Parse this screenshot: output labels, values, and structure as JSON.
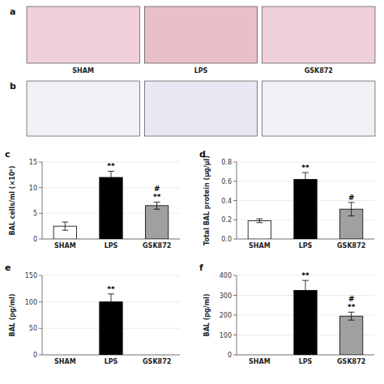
{
  "chart_data": [
    {
      "type": "image",
      "title": "a",
      "categories": [
        "SHAM",
        "LPS",
        "GSK872"
      ],
      "colors": [
        "#f0d0d8",
        "#e8c0c8",
        "#f0d0d8"
      ]
    },
    {
      "type": "image",
      "title": "b",
      "colors": [
        "#f0f0f5",
        "#e8e8f5",
        "#f0f0f5"
      ]
    },
    {
      "type": "bar",
      "title": "c",
      "categories": [
        "SHAM",
        "LPS",
        "GSK872"
      ],
      "values": [
        2.5,
        12.0,
        6.5
      ],
      "errors": [
        0.8,
        1.2,
        0.7
      ],
      "colors": [
        "white",
        "black",
        "#a0a0a0"
      ],
      "ylabel": "BAL cells/ml (×10⁶)",
      "ylim": [
        0,
        15
      ],
      "yticks": [
        0,
        5,
        10,
        15
      ],
      "annotations": [
        {
          "category": "LPS",
          "text": "**"
        },
        {
          "category": "GSK872",
          "text": "**"
        },
        {
          "category": "GSK872",
          "text": "#"
        }
      ]
    },
    {
      "type": "bar",
      "title": "d",
      "categories": [
        "SHAM",
        "LPS",
        "GSK872"
      ],
      "values": [
        0.19,
        0.62,
        0.31
      ],
      "errors": [
        0.02,
        0.07,
        0.07
      ],
      "colors": [
        "white",
        "black",
        "#a0a0a0"
      ],
      "ylabel": "Total BAL protein (μg/μl)",
      "ylim": [
        0.0,
        0.8
      ],
      "yticks": [
        {
          "value": 0.0,
          "label": "0.0"
        },
        0.2,
        0.4,
        0.6,
        0.8
      ],
      "annotations": [
        {
          "category": "LPS",
          "text": "**"
        },
        {
          "category": "GSK872",
          "text": "#"
        }
      ]
    },
    {
      "type": "bar",
      "title": "e",
      "categories": [
        "SHAM",
        "LPS",
        "GSK872"
      ],
      "values": [
        0,
        100,
        0
      ],
      "errors": [
        0,
        15,
        0
      ],
      "colors": [
        "white",
        "black",
        "#a0a0a0"
      ],
      "ylabel": "BAL (pg/ml)",
      "ylim": [
        0,
        150
      ],
      "yticks": [
        0,
        50,
        100,
        150
      ],
      "annotations": [
        {
          "category": "LPS",
          "text": "**"
        }
      ]
    },
    {
      "type": "bar",
      "title": "f",
      "categories": [
        "SHAM",
        "LPS",
        "GSK872"
      ],
      "values": [
        0,
        325,
        195
      ],
      "errors": [
        0,
        50,
        20
      ],
      "colors": [
        "white",
        "black",
        "#a0a0a0"
      ],
      "ylabel": "BAL (pg/ml)",
      "ylim": [
        0,
        400
      ],
      "yticks": [
        0,
        100,
        200,
        300,
        400
      ],
      "annotations": [
        {
          "category": "LPS",
          "text": "**"
        },
        {
          "category": "GSK872",
          "text": "**"
        },
        {
          "category": "GSK872",
          "text": "#"
        }
      ]
    }
  ]
}
